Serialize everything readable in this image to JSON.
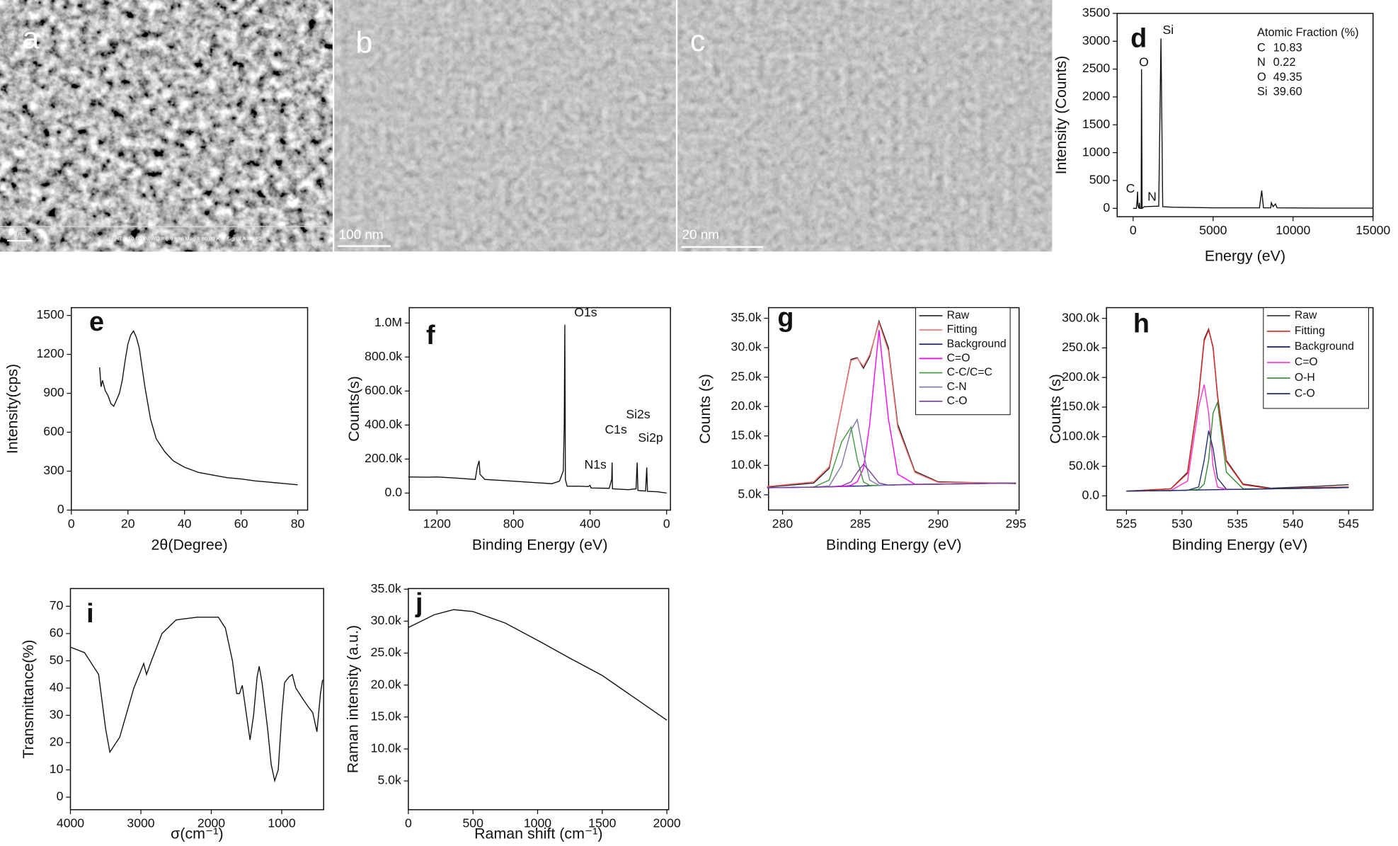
{
  "micrographs": [
    {
      "label": "a",
      "scale_bar": "100 nm",
      "info": "EHT = 10.00 kV     WD = 6.9 mm     Mag = 80.00 K X   Signal A = SE2"
    },
    {
      "label": "b",
      "scale_bar": "100 nm"
    },
    {
      "label": "c",
      "scale_bar": "20 nm"
    }
  ],
  "chart_data": [
    {
      "type": "line",
      "label": "d",
      "x_label": "Energy (eV)",
      "y_label": "Intensity (Counts)",
      "xlim": [
        -1000,
        15000
      ],
      "ylim": [
        -150,
        3500
      ],
      "xticks": [
        0,
        5000,
        10000,
        15000
      ],
      "yticks": [
        0,
        500,
        1000,
        1500,
        2000,
        2500,
        3000,
        3500
      ],
      "color": "#111111",
      "x": [
        0,
        200,
        250,
        277,
        300,
        360,
        392,
        420,
        500,
        525,
        560,
        700,
        1600,
        1740,
        1850,
        2500,
        5000,
        7900,
        8040,
        8150,
        8600,
        8640,
        8750,
        8900,
        9000,
        12000,
        15000
      ],
      "values": [
        0,
        0,
        150,
        300,
        50,
        0,
        100,
        0,
        0,
        2500,
        0,
        30,
        40,
        3050,
        30,
        20,
        10,
        10,
        320,
        10,
        10,
        100,
        30,
        80,
        10,
        5,
        5
      ],
      "annotations": [
        {
          "text": "C",
          "x": -170,
          "y": 340
        },
        {
          "text": "N",
          "x": 1180,
          "y": 195
        },
        {
          "text": "O",
          "x": 674,
          "y": 2610
        },
        {
          "text": "Si",
          "x": 2190,
          "y": 3190
        }
      ],
      "inset_title": "Atomic Fraction (%)",
      "inset_rows": [
        [
          "C",
          "10.83"
        ],
        [
          "N",
          "0.22"
        ],
        [
          "O",
          "49.35"
        ],
        [
          "Si",
          "39.60"
        ]
      ]
    },
    {
      "type": "line",
      "label": "e",
      "x_label": "2θ(Degree)",
      "y_label": "Intensity(cps)",
      "xlim": [
        0,
        83.5
      ],
      "ylim": [
        0,
        1560
      ],
      "xticks": [
        0,
        20,
        40,
        60,
        80
      ],
      "yticks": [
        0,
        300,
        600,
        900,
        1200,
        1500
      ],
      "color": "#111111",
      "x": [
        10,
        10.5,
        11,
        12,
        13,
        14,
        15,
        16,
        17,
        18,
        19,
        20,
        21,
        22,
        23,
        24,
        25,
        26,
        28,
        30,
        33,
        36,
        40,
        45,
        50,
        55,
        60,
        65,
        70,
        75,
        80
      ],
      "values": [
        1100,
        950,
        1000,
        920,
        880,
        820,
        800,
        850,
        900,
        1000,
        1150,
        1280,
        1350,
        1380,
        1330,
        1250,
        1100,
        950,
        700,
        550,
        450,
        380,
        330,
        290,
        270,
        250,
        240,
        225,
        215,
        205,
        195
      ]
    },
    {
      "type": "line",
      "label": "f",
      "x_label": "Binding Energy (eV)",
      "y_label": "Counts(s)",
      "xlim": [
        1345,
        -20
      ],
      "ylim": [
        -100000,
        1090000
      ],
      "xticks": [
        1200,
        800,
        400,
        0
      ],
      "yticks": [
        {
          "value": 0,
          "label": "0.0"
        },
        {
          "value": 200000,
          "label": "200.0k"
        },
        {
          "value": 400000,
          "label": "400.0k"
        },
        {
          "value": 600000,
          "label": "600.0k"
        },
        {
          "value": 800000,
          "label": "800.0k"
        },
        {
          "value": 1000000,
          "label": "1.0M"
        }
      ],
      "color": "#111111",
      "x": [
        1350,
        1250,
        1200,
        1100,
        1000,
        990,
        980,
        975,
        950,
        800,
        600,
        560,
        540,
        535,
        532,
        529,
        520,
        450,
        410,
        400,
        395,
        300,
        287,
        285,
        283,
        200,
        160,
        154,
        150,
        110,
        104,
        100,
        50,
        0
      ],
      "values": [
        95000,
        93000,
        95000,
        88000,
        80000,
        150000,
        190000,
        110000,
        80000,
        70000,
        55000,
        70000,
        130000,
        400000,
        990000,
        80000,
        40000,
        40000,
        38000,
        45000,
        30000,
        28000,
        80000,
        180000,
        25000,
        20000,
        25000,
        180000,
        15000,
        12000,
        150000,
        10000,
        8000,
        0
      ],
      "annotations": [
        {
          "text": "O1s",
          "x": 423,
          "y": 1058000
        },
        {
          "text": "C1s",
          "x": 265,
          "y": 368000
        },
        {
          "text": "N1s",
          "x": 372,
          "y": 163000
        },
        {
          "text": "Si2s",
          "x": 149,
          "y": 458000
        },
        {
          "text": "Si2p",
          "x": 84,
          "y": 321000
        }
      ]
    },
    {
      "type": "line",
      "label": "g",
      "x_label": "Binding Energy (eV)",
      "y_label": "Counts (s)",
      "xlim": [
        279.1,
        295.2
      ],
      "ylim": [
        2400,
        36800
      ],
      "xticks": [
        280,
        285,
        290,
        295
      ],
      "yticks": [
        {
          "value": 5000,
          "label": "5.0k"
        },
        {
          "value": 10000,
          "label": "10.0k"
        },
        {
          "value": 15000,
          "label": "15.0k"
        },
        {
          "value": 20000,
          "label": "20.0k"
        },
        {
          "value": 25000,
          "label": "25.0k"
        },
        {
          "value": 30000,
          "label": "30.0k"
        },
        {
          "value": 35000,
          "label": "35.0k"
        }
      ],
      "legend": "upper right",
      "x": [
        279,
        282,
        283,
        283.8,
        284.4,
        284.8,
        285.2,
        285.6,
        286.2,
        286.8,
        287.4,
        288.5,
        290,
        295
      ],
      "series": [
        {
          "name": "Raw",
          "color": "#222222",
          "values": [
            6300,
            7000,
            9500,
            20000,
            28000,
            28300,
            26500,
            28500,
            34500,
            30000,
            17000,
            9000,
            7200,
            6900
          ]
        },
        {
          "name": "Fitting",
          "color": "#ff7070",
          "values": [
            6400,
            7200,
            9800,
            20000,
            27800,
            28200,
            26800,
            28800,
            34200,
            29500,
            16500,
            8800,
            7100,
            7000
          ]
        },
        {
          "name": "Background",
          "color": "#1a1a8c",
          "values": [
            6200,
            6300,
            6350,
            6400,
            6450,
            6480,
            6500,
            6550,
            6600,
            6650,
            6700,
            6750,
            6800,
            7000
          ]
        },
        {
          "name": "C=O",
          "color": "#ff00ff",
          "values": [
            6200,
            6300,
            6350,
            6400,
            6600,
            7200,
            9500,
            17000,
            33000,
            18000,
            8500,
            6800,
            6800,
            7000
          ]
        },
        {
          "name": "C-C/C=C",
          "color": "#3a9a3a",
          "values": [
            6200,
            6300,
            7500,
            14000,
            16500,
            11000,
            7200,
            6600,
            6600,
            6650,
            6700,
            6750,
            6800,
            7000
          ]
        },
        {
          "name": "C-N",
          "color": "#7a7aa8",
          "values": [
            6200,
            6300,
            6500,
            10000,
            16000,
            17800,
            12000,
            7500,
            6600,
            6650,
            6700,
            6750,
            6800,
            7000
          ]
        },
        {
          "name": "C-O",
          "color": "#7a3a9a",
          "values": [
            6200,
            6300,
            6350,
            6500,
            7200,
            8800,
            10200,
            9000,
            7000,
            6650,
            6700,
            6750,
            6800,
            7000
          ]
        }
      ]
    },
    {
      "type": "line",
      "label": "h",
      "x_label": "Binding Energy (eV)",
      "y_label": "Counts (s)",
      "xlim": [
        523.2,
        547.2
      ],
      "ylim": [
        -24000,
        318000
      ],
      "xticks": [
        525,
        530,
        535,
        540,
        545
      ],
      "yticks": [
        {
          "value": 0,
          "label": "0.0"
        },
        {
          "value": 50000,
          "label": "50.0k"
        },
        {
          "value": 100000,
          "label": "100.0k"
        },
        {
          "value": 150000,
          "label": "150.0k"
        },
        {
          "value": 200000,
          "label": "200.0k"
        },
        {
          "value": 250000,
          "label": "250.0k"
        },
        {
          "value": 300000,
          "label": "300.0k"
        }
      ],
      "legend": "upper right",
      "x": [
        525,
        529,
        530.5,
        531.5,
        532,
        532.4,
        532.8,
        533.2,
        534,
        535.5,
        538,
        542,
        545
      ],
      "series": [
        {
          "name": "Raw",
          "color": "#333333",
          "values": [
            8000,
            12000,
            40000,
            170000,
            265000,
            282000,
            250000,
            170000,
            60000,
            20000,
            13000,
            16000,
            19000
          ]
        },
        {
          "name": "Fitting",
          "color": "#e02020",
          "values": [
            8000,
            12000,
            38000,
            168000,
            262000,
            280000,
            252000,
            168000,
            58000,
            19000,
            12000,
            14000,
            15000
          ]
        },
        {
          "name": "Background",
          "color": "#1a1a8c",
          "values": [
            8000,
            9000,
            9500,
            10000,
            10200,
            10300,
            10400,
            10500,
            10800,
            11000,
            12000,
            13000,
            14000
          ]
        },
        {
          "name": "C=O",
          "color": "#ff33cc",
          "values": [
            8000,
            9000,
            25000,
            150000,
            188000,
            140000,
            50000,
            15000,
            10800,
            11000,
            12000,
            13000,
            14000
          ]
        },
        {
          "name": "O-H",
          "color": "#2e8b2e",
          "values": [
            8000,
            9000,
            9500,
            11000,
            20000,
            60000,
            140000,
            158000,
            40000,
            12000,
            12000,
            13000,
            14000
          ]
        },
        {
          "name": "C-O",
          "color": "#1f2f6f",
          "values": [
            8000,
            9000,
            9500,
            15000,
            60000,
            110000,
            80000,
            30000,
            11000,
            11000,
            12000,
            13000,
            14000
          ]
        }
      ]
    },
    {
      "type": "line",
      "label": "i",
      "x_label": "σ(cm⁻¹)",
      "y_label": "Transmittance(%)",
      "xlim": [
        4000,
        405
      ],
      "ylim": [
        -4.6,
        76.5
      ],
      "xticks": [
        4000,
        3000,
        2000,
        1000
      ],
      "yticks": [
        0,
        10,
        20,
        30,
        40,
        50,
        60,
        70
      ],
      "color": "#111111",
      "x": [
        4000,
        3800,
        3600,
        3500,
        3440,
        3300,
        3100,
        2960,
        2920,
        2850,
        2700,
        2500,
        2200,
        1900,
        1800,
        1700,
        1640,
        1600,
        1560,
        1500,
        1450,
        1400,
        1350,
        1320,
        1280,
        1200,
        1150,
        1100,
        1050,
        1000,
        960,
        900,
        850,
        800,
        750,
        700,
        620,
        560,
        500,
        450,
        420
      ],
      "values": [
        55,
        53,
        45,
        25,
        16.5,
        22,
        40,
        49,
        45,
        50,
        60,
        65,
        66,
        66,
        62,
        50,
        38,
        38,
        41,
        30,
        21,
        30,
        44,
        48,
        42,
        25,
        12,
        6,
        10,
        30,
        42,
        44,
        45,
        40,
        38,
        36,
        33,
        31,
        24,
        38,
        43
      ]
    },
    {
      "type": "line",
      "label": "j",
      "x_label": "Raman shift (cm⁻¹)",
      "y_label": "Raman intensity (a.u.)",
      "xlim": [
        0,
        2014
      ],
      "ylim": [
        500,
        35100
      ],
      "xticks": [
        0,
        500,
        1000,
        1500,
        2000
      ],
      "yticks": [
        {
          "value": 5000,
          "label": "5.0k"
        },
        {
          "value": 10000,
          "label": "10.0k"
        },
        {
          "value": 15000,
          "label": "15.0k"
        },
        {
          "value": 20000,
          "label": "20.0k"
        },
        {
          "value": 25000,
          "label": "25.0k"
        },
        {
          "value": 30000,
          "label": "30.0k"
        },
        {
          "value": 35000,
          "label": "35.0k"
        }
      ],
      "color": "#111111",
      "x": [
        0,
        100,
        200,
        350,
        500,
        750,
        1000,
        1250,
        1500,
        1750,
        2000
      ],
      "values": [
        29000,
        30000,
        31000,
        31800,
        31500,
        29700,
        27000,
        24200,
        21500,
        18000,
        14500
      ]
    }
  ]
}
